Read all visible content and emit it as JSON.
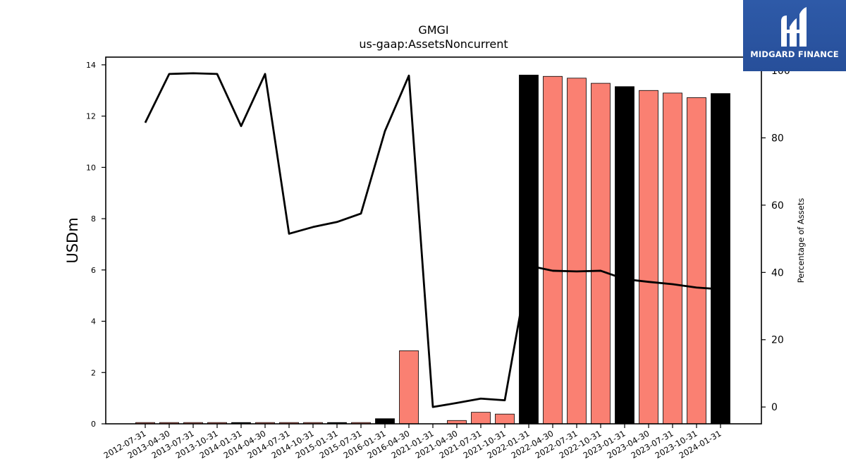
{
  "chart_data": {
    "type": "bar",
    "title": "GMGI",
    "subtitle": "us-gaap:AssetsNoncurrent",
    "ylabel": "USDm",
    "y2label": "Percentage of Assets",
    "ylim": [
      0,
      14.3
    ],
    "y2lim": [
      -5,
      104
    ],
    "yticks": [
      0,
      2,
      4,
      6,
      8,
      10,
      12,
      14
    ],
    "y2ticks": [
      0,
      20,
      40,
      60,
      80,
      100
    ],
    "categories": [
      "2012-07-31",
      "2013-04-30",
      "2013-07-31",
      "2013-10-31",
      "2014-01-31",
      "2014-04-30",
      "2014-07-31",
      "2014-10-31",
      "2015-01-31",
      "2015-07-31",
      "2016-01-31",
      "2016-04-30",
      "2021-01-31",
      "2021-04-30",
      "2021-07-31",
      "2021-10-31",
      "2022-01-31",
      "2022-04-30",
      "2022-07-31",
      "2022-10-31",
      "2023-01-31",
      "2023-04-30",
      "2023-07-31",
      "2023-10-31",
      "2024-01-31"
    ],
    "series": [
      {
        "kind": "bar",
        "values": [
          0.05,
          0.05,
          0.05,
          0.05,
          0.05,
          0.05,
          0.05,
          0.05,
          0.05,
          0.05,
          0.2,
          2.85,
          0.0,
          0.13,
          0.45,
          0.38,
          13.6,
          13.55,
          13.48,
          13.28,
          13.15,
          13.0,
          12.9,
          12.72,
          12.88
        ],
        "colors": [
          "#fa8072",
          "#fa8072",
          "#fa8072",
          "#fa8072",
          "#000000",
          "#fa8072",
          "#fa8072",
          "#fa8072",
          "#000000",
          "#fa8072",
          "#000000",
          "#fa8072",
          "#fa8072",
          "#fa8072",
          "#fa8072",
          "#fa8072",
          "#000000",
          "#fa8072",
          "#fa8072",
          "#fa8072",
          "#000000",
          "#fa8072",
          "#fa8072",
          "#fa8072",
          "#000000"
        ]
      },
      {
        "kind": "line",
        "axis": "right",
        "color": "#000000",
        "values": [
          84.5,
          99.0,
          99.2,
          99.0,
          83.5,
          99.0,
          51.5,
          53.5,
          55.0,
          57.5,
          82.0,
          98.5,
          0.0,
          1.2,
          2.5,
          2.0,
          42.0,
          40.5,
          40.3,
          40.5,
          38.0,
          37.2,
          36.5,
          35.5,
          35.0
        ]
      }
    ]
  },
  "logo": {
    "text": "MIDGARD FINANCE"
  }
}
